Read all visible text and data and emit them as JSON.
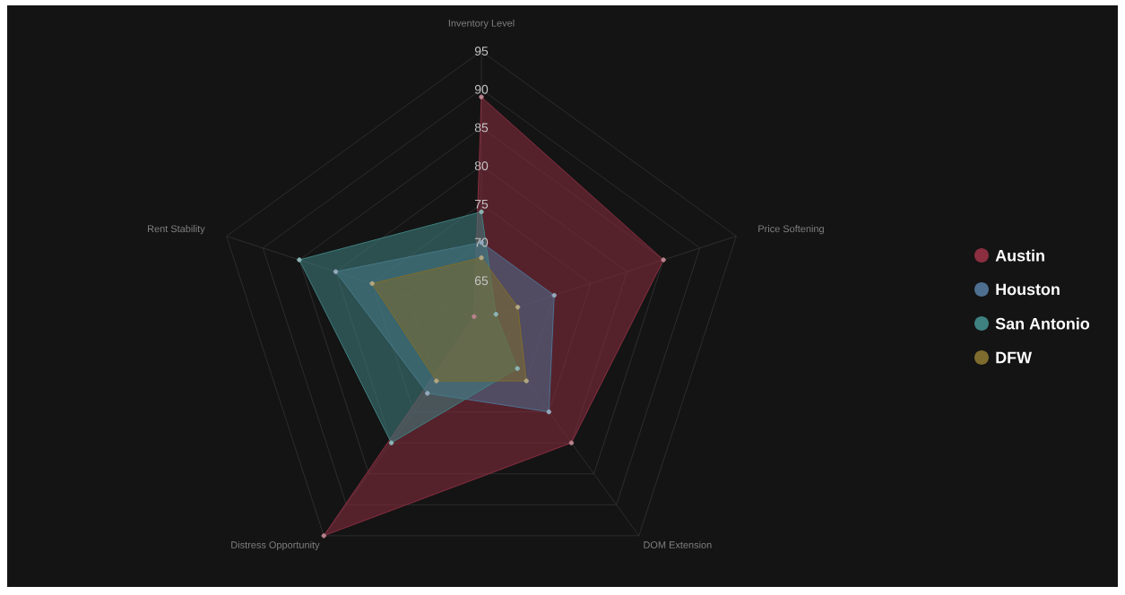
{
  "chart_data": {
    "type": "radar",
    "categories": [
      "Inventory Level",
      "Price Softening",
      "DOM Extension",
      "Distress Opportunity",
      "Rent Stability"
    ],
    "ylim": [
      60,
      95
    ],
    "yticks": [
      65,
      70,
      75,
      80,
      85,
      90,
      95
    ],
    "grid": true,
    "legend": "right",
    "marker": "circle",
    "series": [
      {
        "name": "Austin",
        "color": "#8a2e40",
        "values": [
          89,
          85,
          80,
          95,
          61
        ]
      },
      {
        "name": "Houston",
        "color": "#4e6f90",
        "values": [
          70,
          70,
          75,
          72,
          80
        ]
      },
      {
        "name": "San Antonio",
        "color": "#3f8080",
        "values": [
          74,
          62,
          68,
          80,
          85
        ]
      },
      {
        "name": "DFW",
        "color": "#7d6c2e",
        "values": [
          68,
          65,
          70,
          70,
          75
        ]
      }
    ]
  }
}
